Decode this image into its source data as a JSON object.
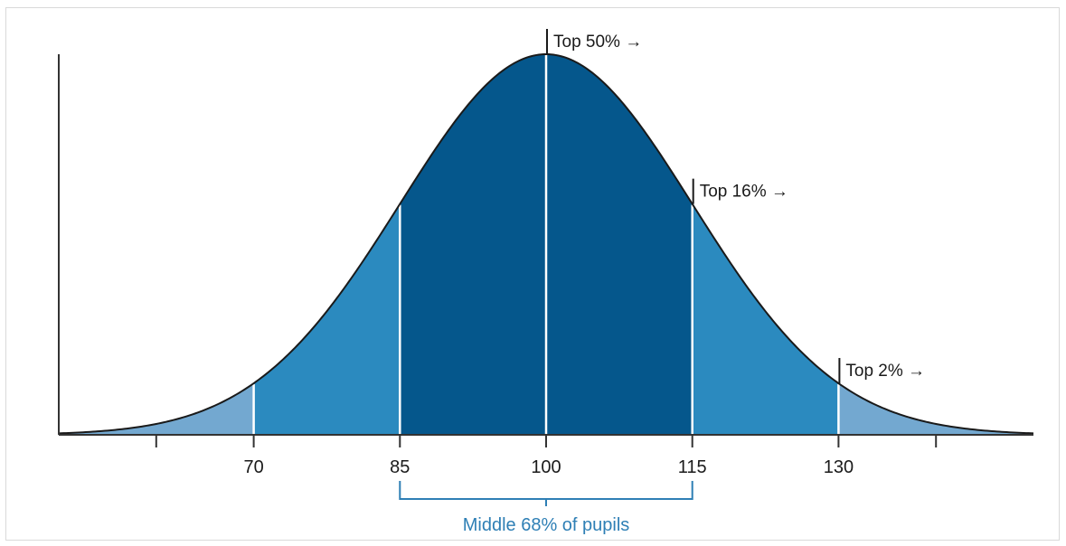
{
  "chart_data": {
    "type": "area",
    "distribution": "normal",
    "mean": 100,
    "sd": 15,
    "xlim": [
      50,
      150
    ],
    "x_ticks": [
      60,
      70,
      85,
      100,
      115,
      130,
      140
    ],
    "x_tick_labels": [
      "",
      "70",
      "85",
      "100",
      "115",
      "130",
      ""
    ],
    "bands": [
      {
        "from": 50,
        "to": 70,
        "color": "#73a8d0"
      },
      {
        "from": 70,
        "to": 85,
        "color": "#2b8abf"
      },
      {
        "from": 85,
        "to": 115,
        "color": "#05578c"
      },
      {
        "from": 115,
        "to": 130,
        "color": "#2b8abf"
      },
      {
        "from": 130,
        "to": 150,
        "color": "#73a8d0"
      }
    ],
    "dividers": [
      70,
      85,
      100,
      115,
      130
    ],
    "annotations": [
      {
        "x": 100,
        "text": "Top 50% →"
      },
      {
        "x": 115,
        "text": "Top 16% →"
      },
      {
        "x": 130,
        "text": "Top 2% →"
      }
    ],
    "bracket": {
      "from": 85,
      "to": 115,
      "label": "Middle 68% of pupils",
      "color": "#2e7fb5"
    },
    "grid": false,
    "legend": "none"
  }
}
